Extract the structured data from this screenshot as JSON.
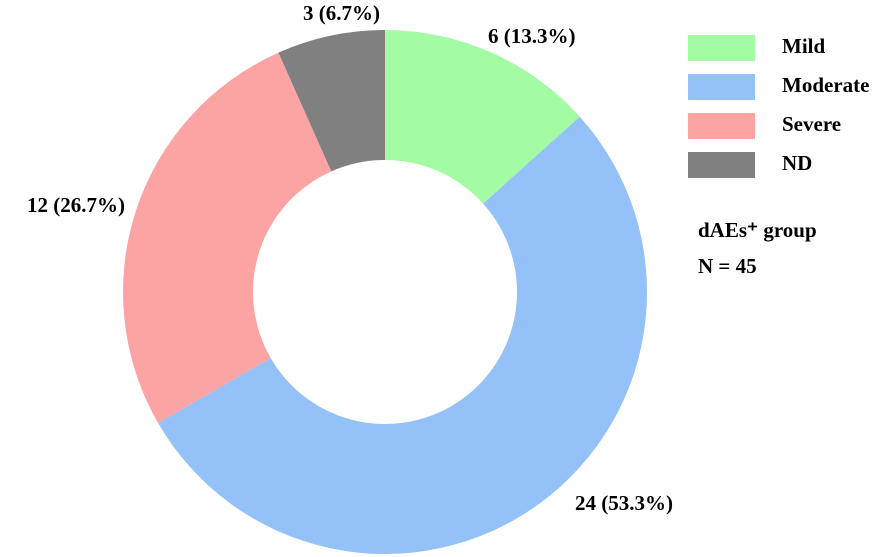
{
  "chart_data": {
    "type": "donut",
    "categories": [
      "Mild",
      "Moderate",
      "Severe",
      "ND"
    ],
    "values": [
      6,
      24,
      12,
      3
    ],
    "value_labels": [
      "6 (13.3%)",
      "24 (53.3%)",
      "12 (26.7%)",
      "3 (6.7%)"
    ],
    "colors": [
      "#a3fca3",
      "#94c1f7",
      "#fca3a3",
      "#808080"
    ],
    "annotations": [
      "dAEs⁺ group",
      "N = 45"
    ]
  }
}
